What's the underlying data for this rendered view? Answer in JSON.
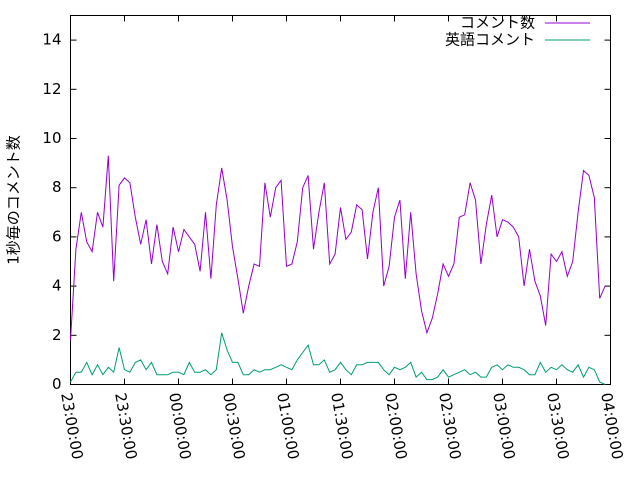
{
  "chart_data": {
    "type": "line",
    "ylabel": "1秒毎のコメント数",
    "x": [
      0,
      3,
      6,
      9,
      12,
      15,
      18,
      21,
      24,
      27,
      30,
      33,
      36,
      39,
      42,
      45,
      48,
      51,
      54,
      57,
      60,
      63,
      66,
      69,
      72,
      75,
      78,
      81,
      84,
      87,
      90,
      93,
      96,
      99,
      102,
      105,
      108,
      111,
      114,
      117,
      120,
      123,
      126,
      129,
      132,
      135,
      138,
      141,
      144,
      147,
      150,
      153,
      156,
      159,
      162,
      165,
      168,
      171,
      174,
      177,
      180,
      183,
      186,
      189,
      192,
      195,
      198,
      201,
      204,
      207,
      210,
      213,
      216,
      219,
      222,
      225,
      228,
      231,
      234,
      237,
      240,
      243,
      246,
      249,
      252,
      255,
      258,
      261,
      264,
      267,
      270,
      273,
      276,
      279,
      282,
      285,
      288,
      291,
      294,
      297
    ],
    "series": [
      {
        "name": "コメント数",
        "color": "#9400d3",
        "values": [
          1.8,
          5.5,
          7.0,
          5.8,
          5.4,
          7.0,
          6.4,
          9.3,
          4.2,
          8.1,
          8.4,
          8.2,
          6.8,
          5.7,
          6.7,
          4.9,
          6.5,
          5.0,
          4.5,
          6.4,
          5.4,
          6.3,
          6.0,
          5.7,
          4.6,
          7.0,
          4.3,
          7.3,
          8.8,
          7.5,
          5.6,
          4.3,
          2.9,
          4.0,
          4.9,
          4.8,
          8.2,
          6.8,
          8.0,
          8.3,
          4.8,
          4.9,
          5.8,
          8.0,
          8.5,
          5.5,
          7.0,
          8.2,
          4.9,
          5.3,
          7.2,
          5.9,
          6.2,
          7.3,
          7.1,
          5.1,
          7.0,
          8.0,
          4.0,
          4.8,
          6.8,
          7.5,
          4.3,
          7.0,
          4.5,
          3.0,
          2.1,
          2.7,
          3.7,
          4.9,
          4.4,
          4.9,
          6.8,
          6.9,
          8.2,
          7.5,
          4.9,
          6.5,
          7.7,
          6.0,
          6.7,
          6.6,
          6.4,
          6.0,
          4.0,
          5.5,
          4.2,
          3.6,
          2.4,
          5.3,
          5.0,
          5.4,
          4.4,
          5.0,
          7.0,
          8.7,
          8.5,
          7.6,
          3.5,
          4.0
        ]
      },
      {
        "name": "英語コメント",
        "color": "#009e73",
        "values": [
          0.1,
          0.5,
          0.5,
          0.9,
          0.4,
          0.8,
          0.4,
          0.7,
          0.5,
          1.5,
          0.6,
          0.5,
          0.9,
          1.0,
          0.6,
          0.9,
          0.4,
          0.4,
          0.4,
          0.5,
          0.5,
          0.4,
          0.9,
          0.5,
          0.5,
          0.6,
          0.4,
          0.6,
          2.1,
          1.4,
          0.9,
          0.9,
          0.4,
          0.4,
          0.6,
          0.5,
          0.6,
          0.6,
          0.7,
          0.8,
          0.7,
          0.6,
          1.0,
          1.3,
          1.6,
          0.8,
          0.8,
          1.0,
          0.5,
          0.6,
          0.9,
          0.6,
          0.4,
          0.8,
          0.8,
          0.9,
          0.9,
          0.9,
          0.6,
          0.4,
          0.7,
          0.6,
          0.7,
          0.9,
          0.3,
          0.5,
          0.2,
          0.2,
          0.3,
          0.6,
          0.3,
          0.4,
          0.5,
          0.6,
          0.4,
          0.5,
          0.3,
          0.3,
          0.7,
          0.8,
          0.6,
          0.8,
          0.7,
          0.7,
          0.6,
          0.4,
          0.4,
          0.9,
          0.5,
          0.7,
          0.6,
          0.8,
          0.6,
          0.5,
          0.8,
          0.3,
          0.7,
          0.6,
          0.1,
          0.0
        ]
      }
    ],
    "xlim": [
      0,
      300
    ],
    "xticks": [
      {
        "value": 0,
        "label": "23:00:00"
      },
      {
        "value": 30,
        "label": "23:30:00"
      },
      {
        "value": 60,
        "label": "00:00:00"
      },
      {
        "value": 90,
        "label": "00:30:00"
      },
      {
        "value": 120,
        "label": "01:00:00"
      },
      {
        "value": 150,
        "label": "01:30:00"
      },
      {
        "value": 180,
        "label": "02:00:00"
      },
      {
        "value": 210,
        "label": "02:30:00"
      },
      {
        "value": 240,
        "label": "03:00:00"
      },
      {
        "value": 270,
        "label": "03:30:00"
      },
      {
        "value": 300,
        "label": "04:00:00"
      }
    ],
    "ylim": [
      0,
      15
    ],
    "yticks": [
      0,
      2,
      4,
      6,
      8,
      10,
      12,
      14
    ],
    "legend": "top-right"
  }
}
